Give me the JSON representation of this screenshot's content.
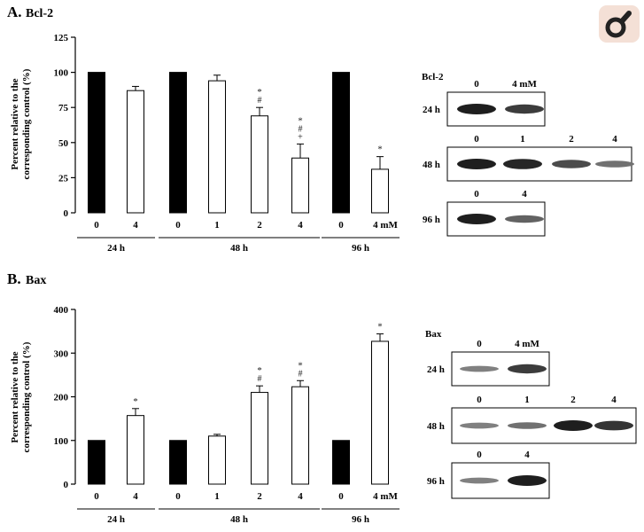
{
  "logo": {
    "icon": "magnifier-logo-icon",
    "bg_color": "#f4e0d6",
    "fg_color": "#222222"
  },
  "chart_data": [
    {
      "type": "bar",
      "panel_letter": "A.",
      "title": "Bcl-2",
      "ylabel": [
        "Percent relative to the",
        "corresponding control (%)"
      ],
      "ylim": [
        0,
        125
      ],
      "yticks": [
        0,
        25,
        50,
        75,
        100,
        125
      ],
      "grid": false,
      "legend": "none",
      "categories": [
        "0",
        "4",
        "0",
        "1",
        "2",
        "4",
        "0",
        "4 mM"
      ],
      "groups": [
        {
          "label": "24 h",
          "from": 0,
          "to": 1
        },
        {
          "label": "48 h",
          "from": 2,
          "to": 5
        },
        {
          "label": "96 h",
          "from": 6,
          "to": 7
        }
      ],
      "values": [
        100,
        87,
        100,
        94,
        69,
        39,
        100,
        31
      ],
      "errors": [
        0,
        3,
        0,
        4,
        6,
        10,
        0,
        9
      ],
      "fills": [
        "#000000",
        "#ffffff",
        "#000000",
        "#ffffff",
        "#ffffff",
        "#ffffff",
        "#000000",
        "#ffffff"
      ],
      "annotations": [
        {
          "index": 4,
          "marks": [
            "*",
            "#"
          ]
        },
        {
          "index": 5,
          "marks": [
            "*",
            "#",
            "+"
          ]
        },
        {
          "index": 7,
          "marks": [
            "*"
          ]
        }
      ],
      "blot": {
        "label": "Bcl-2",
        "rows": [
          {
            "time": "24 h",
            "lanes": [
              "0",
              "4 mM"
            ],
            "bands": [
              1.0,
              0.8
            ]
          },
          {
            "time": "48 h",
            "lanes": [
              "0",
              "1",
              "2",
              "4"
            ],
            "bands": [
              1.0,
              0.95,
              0.7,
              0.45
            ]
          },
          {
            "time": "96 h",
            "lanes": [
              "0",
              "4"
            ],
            "bands": [
              1.0,
              0.55
            ]
          }
        ]
      }
    },
    {
      "type": "bar",
      "panel_letter": "B.",
      "title": "Bax",
      "ylabel": [
        "Percent relative to the",
        "corresponding control (%)"
      ],
      "ylim": [
        0,
        400
      ],
      "yticks": [
        0,
        100,
        200,
        300,
        400
      ],
      "grid": false,
      "legend": "none",
      "categories": [
        "0",
        "4",
        "0",
        "1",
        "2",
        "4",
        "0",
        "4 mM"
      ],
      "groups": [
        {
          "label": "24 h",
          "from": 0,
          "to": 1
        },
        {
          "label": "48 h",
          "from": 2,
          "to": 5
        },
        {
          "label": "96 h",
          "from": 6,
          "to": 7
        }
      ],
      "values": [
        100,
        157,
        100,
        110,
        210,
        223,
        100,
        327
      ],
      "errors": [
        0,
        16,
        0,
        4,
        15,
        14,
        0,
        17
      ],
      "fills": [
        "#000000",
        "#ffffff",
        "#000000",
        "#ffffff",
        "#ffffff",
        "#ffffff",
        "#000000",
        "#ffffff"
      ],
      "annotations": [
        {
          "index": 1,
          "marks": [
            "*"
          ]
        },
        {
          "index": 4,
          "marks": [
            "*",
            "#"
          ]
        },
        {
          "index": 5,
          "marks": [
            "*",
            "#"
          ]
        },
        {
          "index": 7,
          "marks": [
            "*"
          ]
        }
      ],
      "blot": {
        "label": "Bax",
        "rows": [
          {
            "time": "24 h",
            "lanes": [
              "0",
              "4 mM"
            ],
            "bands": [
              0.35,
              0.8
            ]
          },
          {
            "time": "48 h",
            "lanes": [
              "0",
              "1",
              "2",
              "4"
            ],
            "bands": [
              0.35,
              0.45,
              1.0,
              0.85
            ]
          },
          {
            "time": "96 h",
            "lanes": [
              "0",
              "4"
            ],
            "bands": [
              0.35,
              1.0
            ]
          }
        ]
      }
    }
  ]
}
